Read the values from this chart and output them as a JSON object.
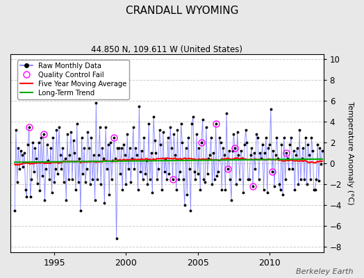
{
  "title": "CRANDALL WYOMING",
  "subtitle": "44.850 N, 109.611 W (United States)",
  "ylabel": "Temperature Anomaly (°C)",
  "watermark": "Berkeley Earth",
  "ylim": [
    -8.5,
    10.5
  ],
  "yticks": [
    -8,
    -6,
    -4,
    -2,
    0,
    2,
    4,
    6,
    8,
    10
  ],
  "xlim_start": 1992.25,
  "xlim_end": 2013.75,
  "start_year": 1992.25,
  "n_months": 258,
  "background_color": "#e8e8e8",
  "plot_background": "#ffffff",
  "grid_color": "#cccccc",
  "raw_color": "#7777ff",
  "raw_dot_color": "#000000",
  "ma_color": "#ff0000",
  "trend_color": "#00aa00",
  "qc_color": "#ff00ff",
  "xtick_years": [
    1995,
    2000,
    2005,
    2010
  ],
  "raw_data": [
    -4.5,
    3.2,
    -1.8,
    1.5,
    -0.5,
    1.2,
    0.8,
    -0.3,
    1.0,
    -2.5,
    -3.2,
    1.8,
    3.5,
    -3.2,
    -1.5,
    2.0,
    -0.8,
    1.5,
    0.5,
    -1.9,
    2.0,
    -2.6,
    2.5,
    -1.2,
    2.8,
    -3.5,
    -0.5,
    1.8,
    0.3,
    -1.5,
    1.5,
    -2.8,
    2.5,
    -1.8,
    -0.5,
    3.2,
    -1.0,
    3.5,
    0.8,
    -0.5,
    1.5,
    -1.8,
    0.5,
    -3.5,
    2.8,
    -1.5,
    0.8,
    3.0,
    -1.5,
    2.2,
    1.0,
    -2.5,
    3.8,
    -1.8,
    0.5,
    -4.5,
    2.5,
    -1.0,
    1.5,
    -1.8,
    -0.5,
    3.0,
    1.5,
    -2.0,
    2.5,
    -1.5,
    0.8,
    -3.5,
    5.8,
    -1.5,
    0.8,
    3.5,
    -2.0,
    1.5,
    0.5,
    -3.8,
    3.5,
    -0.5,
    1.8,
    -3.0,
    2.0,
    -1.5,
    0.3,
    2.5,
    0.5,
    -7.2,
    1.5,
    1.5,
    -1.0,
    1.5,
    -2.5,
    1.8,
    0.8,
    -2.0,
    2.8,
    -0.5,
    1.5,
    -1.8,
    0.5,
    3.5,
    -0.5,
    1.5,
    0.8,
    -2.5,
    5.5,
    -0.8,
    1.2,
    -1.5,
    2.5,
    -1.0,
    0.3,
    -2.0,
    3.8,
    -1.5,
    1.0,
    -2.8,
    4.5,
    2.2,
    1.0,
    -1.5,
    -0.5,
    3.2,
    1.8,
    -2.5,
    3.0,
    -0.8,
    0.5,
    -1.5,
    2.5,
    -1.0,
    3.5,
    1.5,
    -1.5,
    2.8,
    0.8,
    -2.5,
    3.2,
    -1.5,
    -0.8,
    3.8,
    2.0,
    -1.5,
    -4.0,
    1.5,
    -3.0,
    2.5,
    -0.5,
    -4.5,
    3.8,
    4.5,
    -0.8,
    -1.5,
    2.8,
    -1.0,
    1.5,
    -2.5,
    2.0,
    4.2,
    -1.5,
    -1.8,
    3.5,
    -1.0,
    0.5,
    0.8,
    2.5,
    -2.0,
    1.0,
    -1.5,
    3.8,
    -1.2,
    -0.8,
    2.5,
    2.0,
    -2.5,
    1.5,
    0.8,
    -2.5,
    4.8,
    -0.5,
    1.2,
    -1.5,
    -3.5,
    1.2,
    2.8,
    1.5,
    -2.0,
    3.0,
    0.8,
    -1.5,
    1.2,
    0.5,
    -2.8,
    1.8,
    3.2,
    2.0,
    -1.5,
    -1.5,
    0.8,
    1.5,
    -2.2,
    1.0,
    -0.5,
    2.8,
    2.5,
    -1.5,
    1.0,
    0.5,
    1.8,
    -2.5,
    1.0,
    2.5,
    -2.8,
    1.5,
    1.8,
    5.2,
    -0.8,
    1.2,
    -2.2,
    0.8,
    2.5,
    0.5,
    -2.0,
    -2.5,
    1.8,
    -3.0,
    2.5,
    -1.5,
    1.0,
    0.5,
    -0.5,
    1.8,
    2.5,
    -0.5,
    1.2,
    -2.5,
    0.8,
    1.5,
    -2.0,
    3.2,
    -1.5,
    0.5,
    1.5,
    -1.5,
    2.5,
    -2.0,
    1.8,
    0.8,
    -1.5,
    2.5,
    1.2,
    -2.5,
    -2.5,
    -1.5,
    1.8
  ],
  "qc_fail_indices": [
    12,
    24,
    83,
    132,
    156,
    168,
    178,
    184,
    199,
    215,
    227
  ]
}
